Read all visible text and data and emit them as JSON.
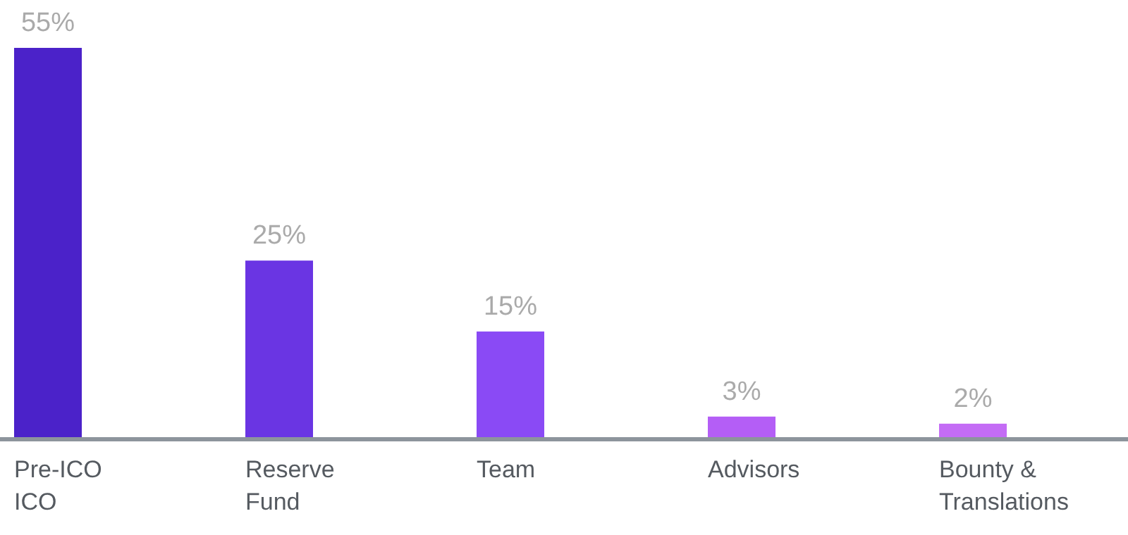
{
  "chart_data": {
    "type": "bar",
    "categories": [
      "Pre-ICO\nICO",
      "Reserve\nFund",
      "Team",
      "Advisors",
      "Bounty &\nTranslations"
    ],
    "values": [
      55,
      25,
      15,
      3,
      2
    ],
    "value_labels": [
      "55%",
      "25%",
      "15%",
      "3%",
      "2%"
    ],
    "colors": [
      "#4b22c9",
      "#6a35e3",
      "#8a4af5",
      "#b45ef6",
      "#c46cf5"
    ]
  }
}
